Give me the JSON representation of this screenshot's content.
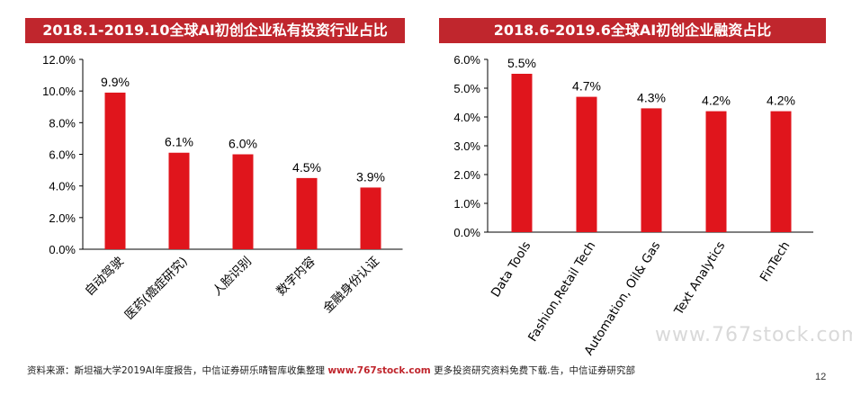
{
  "chart_data": [
    {
      "type": "bar",
      "title": "2018.1-2019.10全球AI初创企业私有投资行业占比",
      "categories": [
        "自动驾驶",
        "医药(癌症研究)",
        "人脸识别",
        "数字内容",
        "金融身份认证"
      ],
      "values": [
        9.9,
        6.1,
        6.0,
        4.5,
        3.9
      ],
      "value_labels": [
        "9.9%",
        "6.1%",
        "6.0%",
        "4.5%",
        "3.9%"
      ],
      "ylim": [
        0,
        12
      ],
      "yticks": [
        "0.0%",
        "2.0%",
        "4.0%",
        "6.0%",
        "8.0%",
        "10.0%",
        "12.0%"
      ],
      "color": "#e0151c",
      "grid": false
    },
    {
      "type": "bar",
      "title": "2018.6-2019.6全球AI初创企业融资占比",
      "categories": [
        "Data Tools",
        "Fashion,Retail Tech",
        "Automation, Oil& Gas",
        "Text Analytics",
        "FinTech"
      ],
      "values": [
        5.5,
        4.7,
        4.3,
        4.2,
        4.2
      ],
      "value_labels": [
        "5.5%",
        "4.7%",
        "4.3%",
        "4.2%",
        "4.2%"
      ],
      "ylim": [
        0,
        6
      ],
      "yticks": [
        "0.0%",
        "1.0%",
        "2.0%",
        "3.0%",
        "4.0%",
        "5.0%",
        "6.0%"
      ],
      "color": "#e0151c",
      "grid": false
    }
  ],
  "footer": {
    "source_label": "资料来源：斯坦福大学2019AI年度报告，中信证券研",
    "overlay_text": "乐晴智库收集整理",
    "site": "www.767stock.com",
    "overlay_text2": "更多投资研究资料免费下载",
    "tail": ".告，中信证券研究部"
  },
  "watermark": "www.767stock.com",
  "page_number": "12"
}
